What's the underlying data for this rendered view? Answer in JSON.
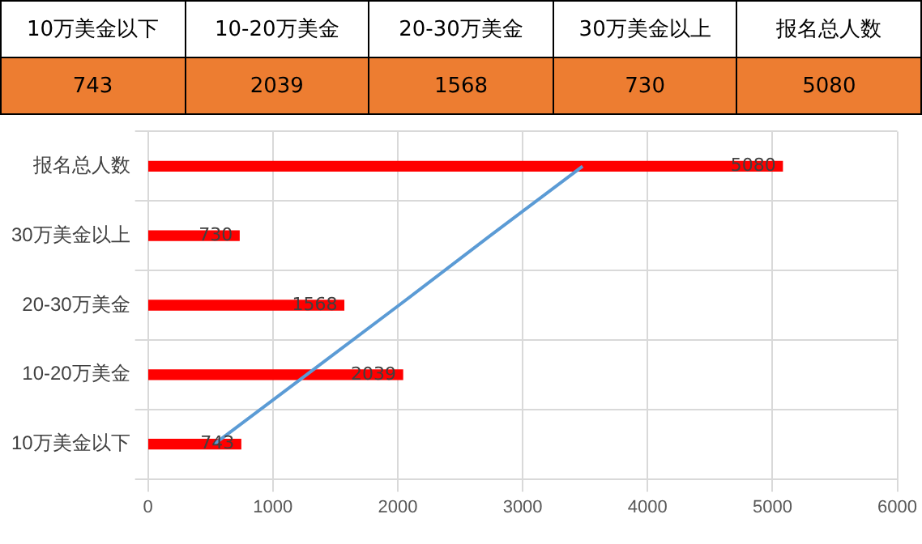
{
  "chart_data": {
    "type": "bar",
    "orientation": "horizontal",
    "categories": [
      "报名总人数",
      "30万美金以上",
      "20-30万美金",
      "10-20万美金",
      "10万美金以下"
    ],
    "series": [
      {
        "color": "#ff0000",
        "values": [
          5080,
          730,
          1568,
          2039,
          743
        ],
        "value_labels": [
          "5080",
          "730",
          "1568",
          "2039",
          "743"
        ]
      },
      {
        "type": "line",
        "color": "#5b9bd5",
        "values": [
          3480,
          2740,
          2010,
          1270,
          530
        ]
      }
    ],
    "xlim": [
      0,
      6000
    ],
    "xticks": [
      0,
      1000,
      2000,
      3000,
      4000,
      5000,
      6000
    ],
    "grid": true,
    "legend": false,
    "marker": "none"
  }
}
